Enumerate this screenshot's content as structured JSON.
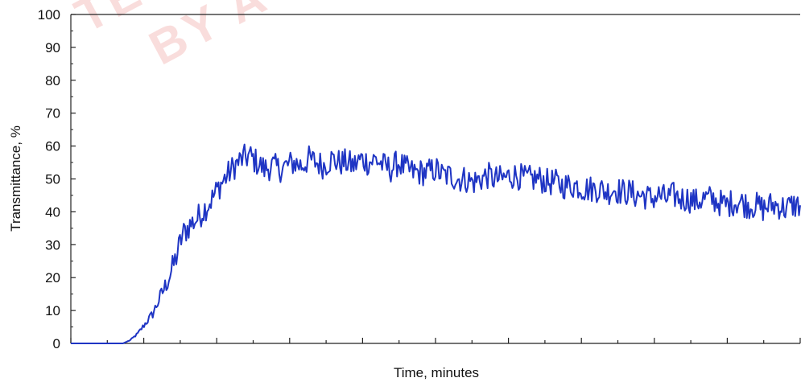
{
  "chart_data": {
    "type": "line",
    "xlabel": "Time, minutes",
    "ylabel": "Transmittance, %",
    "ylim": [
      0,
      100
    ],
    "xlim": [
      0,
      9.8
    ],
    "yticks": [
      "0",
      "10",
      "20",
      "30",
      "40",
      "50",
      "60",
      "70",
      "80",
      "90",
      "100"
    ],
    "x_major_ticks": 10,
    "x_minor_per_major": 2,
    "grid": false,
    "legend": "none",
    "series_color": "#1f35c4",
    "watermark": [
      "TE",
      "BY A"
    ],
    "series": [
      {
        "x": [
          0,
          0.2,
          0.4,
          0.6,
          0.7,
          0.8,
          0.9,
          1.0,
          1.1,
          1.2,
          1.3,
          1.4,
          1.5,
          1.6,
          1.7,
          1.8,
          1.9,
          2.0,
          2.1,
          2.2,
          2.3,
          2.4,
          2.5,
          2.6,
          2.7,
          2.8,
          2.9,
          3.0,
          3.1,
          3.2,
          3.3,
          3.4,
          3.5,
          3.6,
          3.7,
          3.8,
          3.9,
          4.0,
          4.1,
          4.2,
          4.3,
          4.4,
          4.5,
          4.6,
          4.7,
          4.8,
          4.9,
          5.0,
          5.1,
          5.2,
          5.3,
          5.4,
          5.5,
          5.6,
          5.7,
          5.8,
          5.9,
          6.0,
          6.1,
          6.2,
          6.3,
          6.4,
          6.5,
          6.6,
          6.7,
          6.8,
          6.9,
          7.0,
          7.1,
          7.2,
          7.3,
          7.4,
          7.5,
          7.6,
          7.7,
          7.8,
          7.9,
          8.0,
          8.1,
          8.2,
          8.3,
          8.4,
          8.5,
          8.6,
          8.7,
          8.8,
          8.9,
          9.0,
          9.1,
          9.2,
          9.3,
          9.4,
          9.5,
          9.6,
          9.7,
          9.8
        ],
        "values": [
          0,
          0,
          0,
          0,
          0,
          1,
          3,
          6,
          9,
          14,
          19,
          25,
          33,
          36,
          38,
          41,
          44,
          48,
          51,
          54,
          56,
          57,
          55,
          53,
          54,
          53,
          54,
          55,
          54,
          56,
          55,
          54,
          56,
          55,
          55,
          54,
          56,
          55,
          56,
          54,
          53,
          55,
          53,
          52,
          52,
          52,
          53,
          51,
          51,
          50,
          50,
          49,
          50,
          51,
          50,
          50,
          51,
          51,
          50,
          50,
          50,
          49,
          49,
          48,
          48,
          48,
          47,
          47,
          47,
          46,
          47,
          46,
          46,
          45,
          45,
          44,
          45,
          44,
          45,
          44,
          44,
          43,
          44,
          44,
          43,
          42,
          43,
          43,
          42,
          42,
          41,
          42,
          42,
          41,
          42,
          42
        ]
      }
    ]
  }
}
